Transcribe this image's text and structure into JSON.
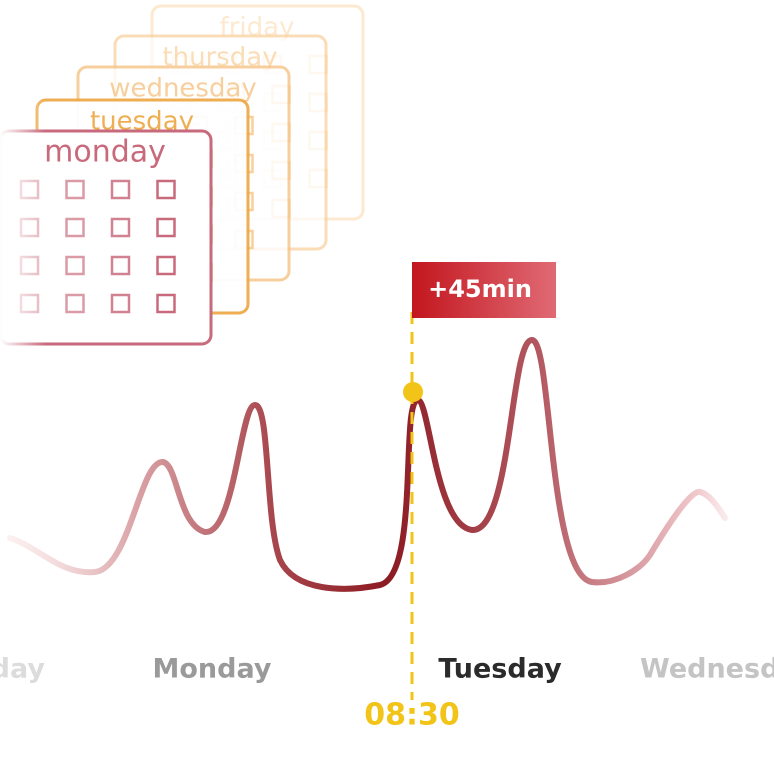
{
  "calendar_days": [
    "monday",
    "tuesday",
    "wednesday",
    "thursday",
    "friday"
  ],
  "badge": "+45min",
  "day_labels": [
    "Sunday",
    "Monday",
    "Tuesday",
    "Wednesday"
  ],
  "time": "08:30"
}
